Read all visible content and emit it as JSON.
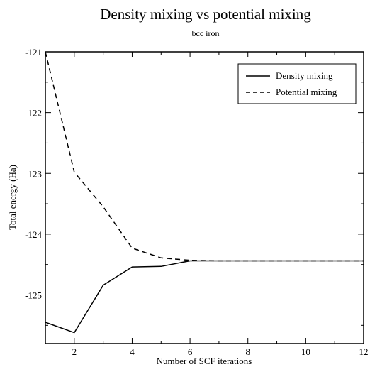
{
  "chart_data": {
    "type": "line",
    "title": "Density mixing vs potential mixing",
    "subtitle": "bcc iron",
    "xlabel": "Number of SCF iterations",
    "ylabel": "Total energy (Ha)",
    "xlim": [
      1,
      12
    ],
    "ylim": [
      -125.8,
      -121
    ],
    "xticks": [
      2,
      4,
      6,
      8,
      10,
      12
    ],
    "yticks": [
      -125,
      -124,
      -123,
      -122,
      -121
    ],
    "xtick_labels": [
      "2",
      "4",
      "6",
      "8",
      "10",
      "12"
    ],
    "ytick_labels": [
      "-125",
      "-124",
      "-123",
      "-122",
      "-121"
    ],
    "grid": false,
    "legend_position": "top-right",
    "series": [
      {
        "name": "Density mixing",
        "line_style": "solid",
        "color": "#000000",
        "x": [
          1,
          2,
          3,
          4,
          5,
          6,
          7,
          8,
          9,
          10,
          11,
          12
        ],
        "y": [
          -125.45,
          -125.62,
          -124.84,
          -124.54,
          -124.53,
          -124.44,
          -124.44,
          -124.44,
          -124.44,
          -124.44,
          -124.44,
          -124.44
        ]
      },
      {
        "name": "Potential mixing",
        "line_style": "dashed",
        "color": "#000000",
        "x": [
          1,
          2,
          3,
          4,
          5,
          6,
          7,
          8,
          9,
          10,
          11,
          12
        ],
        "y": [
          -121.0,
          -122.98,
          -123.55,
          -124.23,
          -124.39,
          -124.43,
          -124.44,
          -124.44,
          -124.44,
          -124.44,
          -124.44,
          -124.44
        ]
      }
    ]
  }
}
